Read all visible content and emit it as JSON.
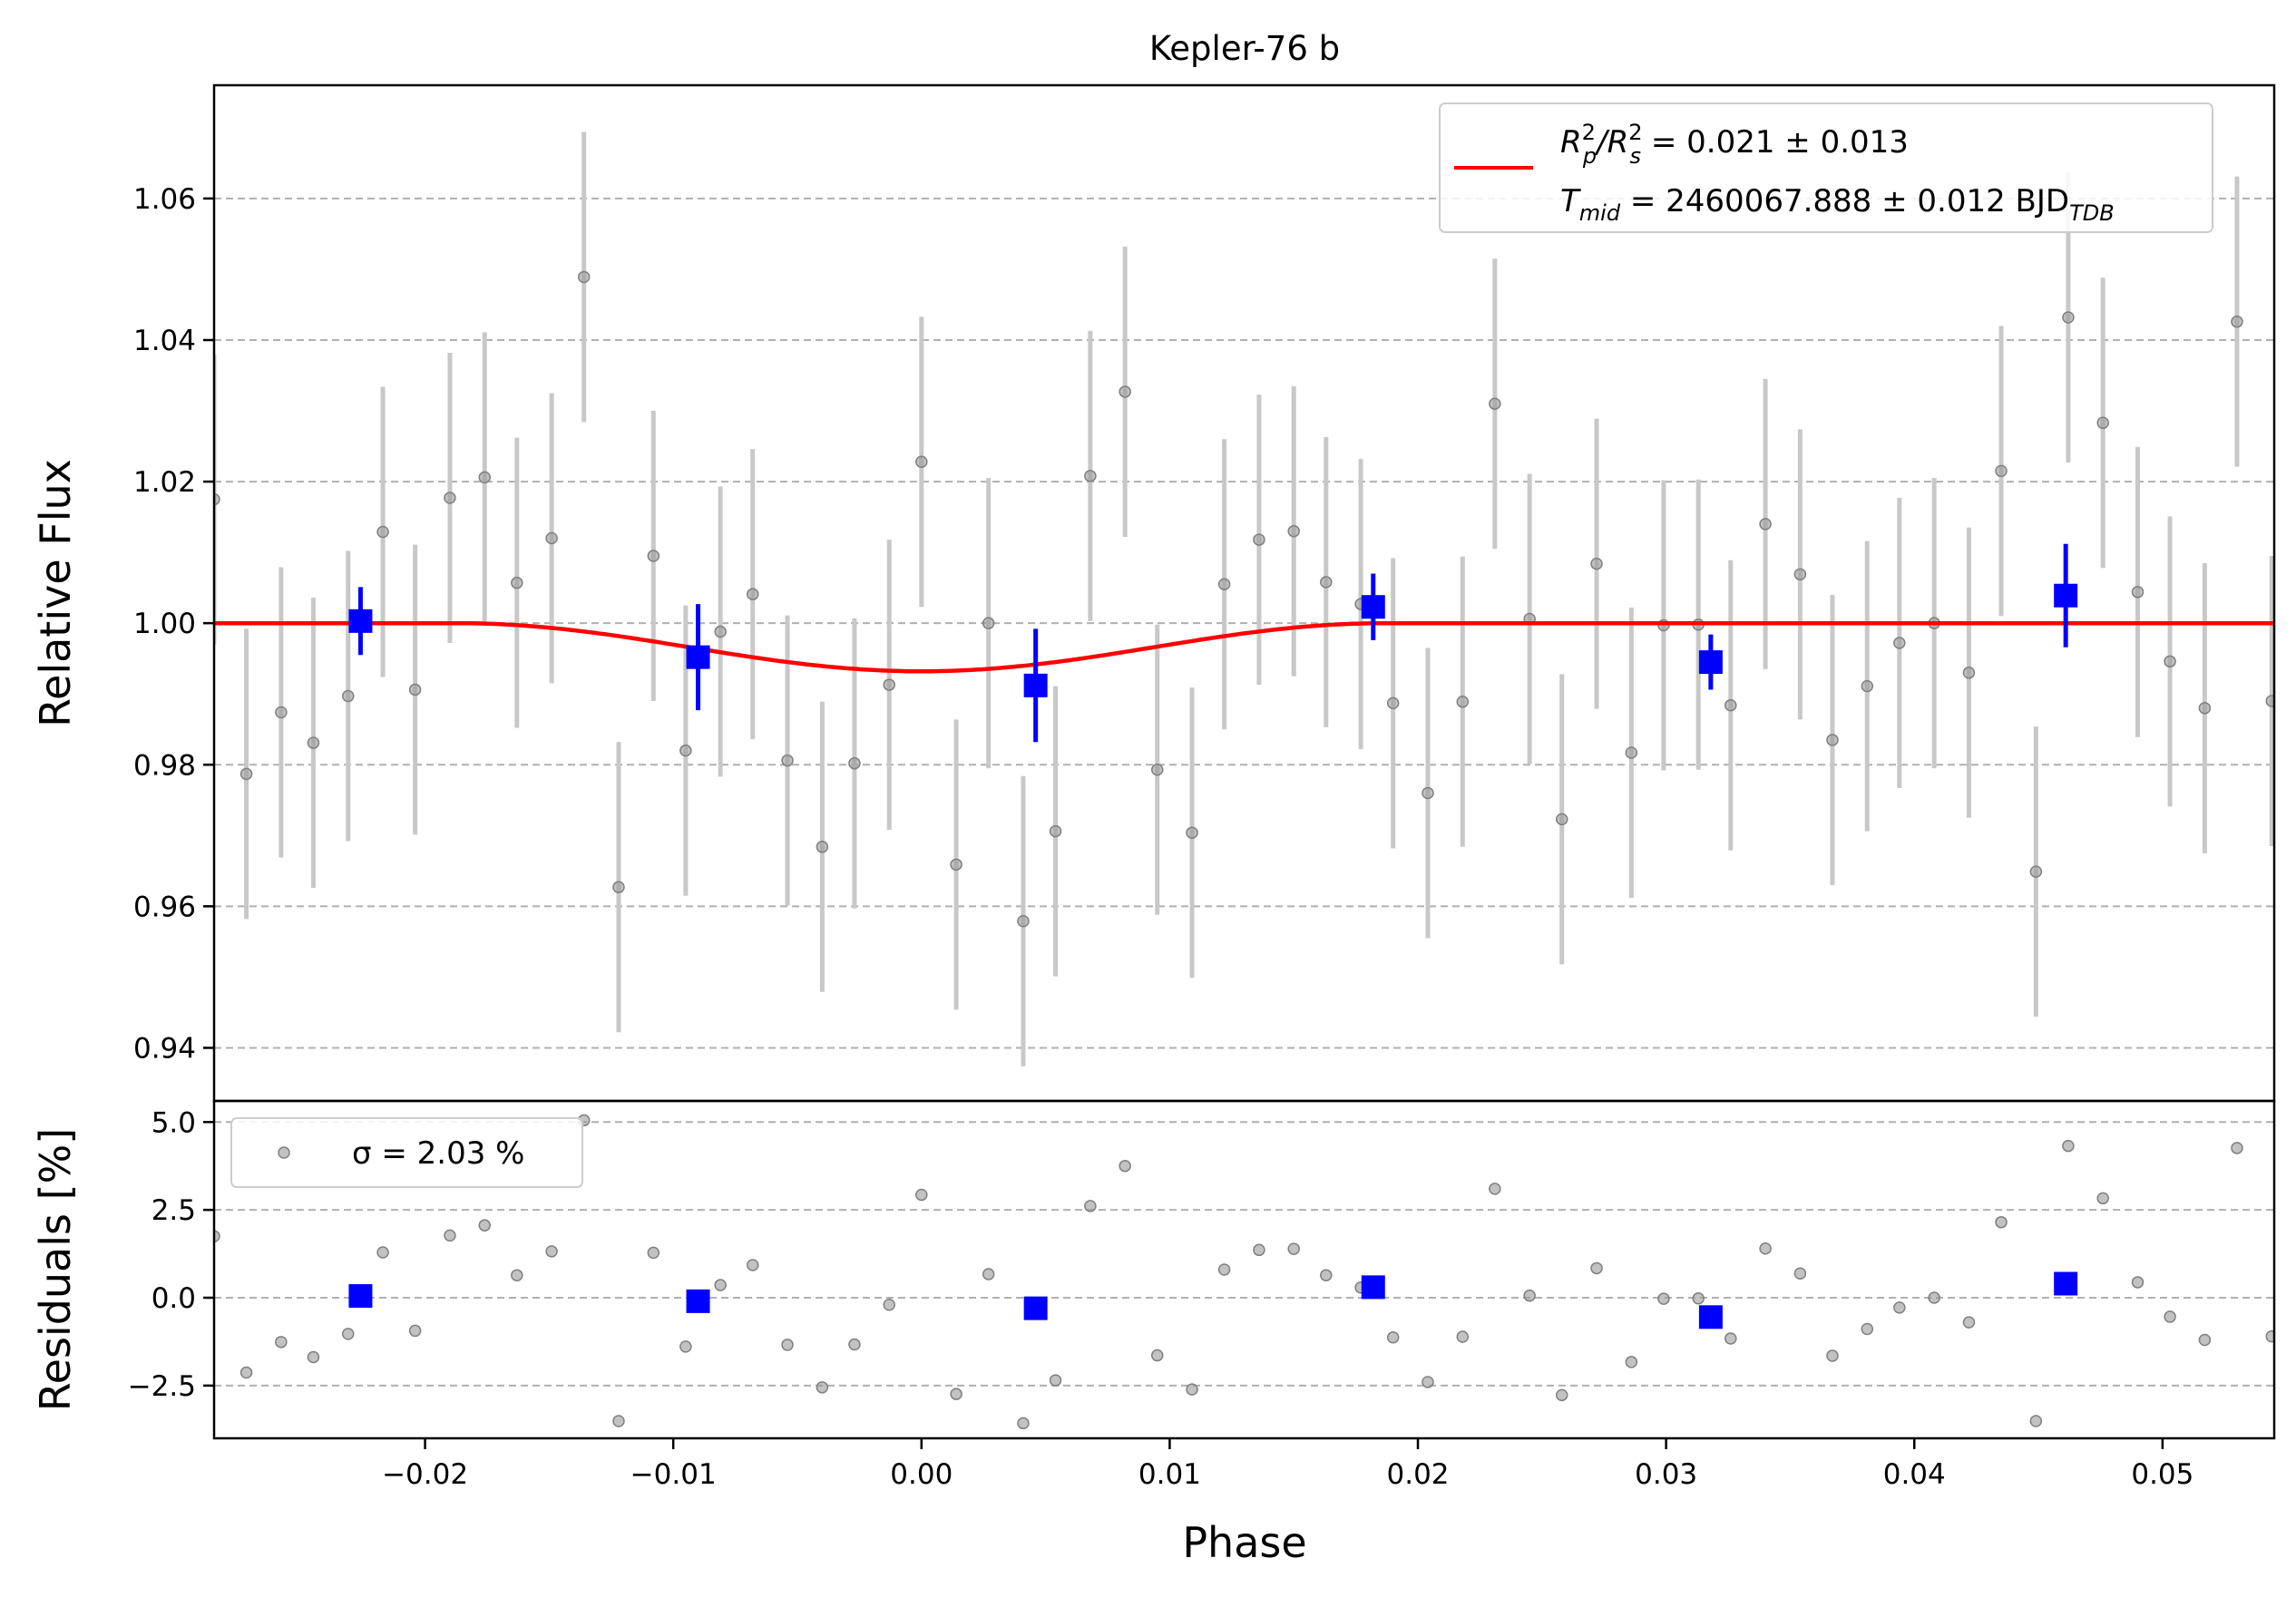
{
  "chart_data": {
    "type": "scatter",
    "title": "Kepler-76 b",
    "xlabel": "Phase",
    "xlim": [
      -0.0285,
      0.0545
    ],
    "xticks": [
      -0.02,
      -0.01,
      0.0,
      0.01,
      0.02,
      0.03,
      0.04,
      0.05
    ],
    "xtick_labels": [
      "−0.02",
      "−0.01",
      "0.00",
      "0.01",
      "0.02",
      "0.03",
      "0.04",
      "0.05"
    ],
    "grid": "horizontal dashed",
    "main_panel": {
      "ylabel": "Relative Flux",
      "ylim": [
        0.9325,
        1.076
      ],
      "yticks": [
        0.94,
        0.96,
        0.98,
        1.0,
        1.02,
        1.04,
        1.06
      ],
      "ytick_labels": [
        "0.94",
        "0.96",
        "0.98",
        "1.00",
        "1.02",
        "1.04",
        "1.06"
      ],
      "legend": {
        "placement": "top-right",
        "line1": {
          "main": "R",
          "sub1": "p",
          "sup1": "2",
          "slash": "/R",
          "sub2": "s",
          "sup2": "2",
          "rest": " = 0.021 ± 0.013"
        },
        "line2": {
          "main": "T",
          "sub1": "mid",
          "rest": " = 2460067.888 ± 0.012 BJD",
          "sub2": "TDB"
        }
      }
    },
    "residual_panel": {
      "ylabel": "Residuals [%]",
      "ylim": [
        -4.0,
        5.6
      ],
      "yticks": [
        -2.5,
        0.0,
        2.5,
        5.0
      ],
      "ytick_labels": [
        "−2.5",
        "0.0",
        "2.5",
        "5.0"
      ],
      "legend": {
        "placement": "top-left",
        "text": "σ = 2.03 %"
      }
    },
    "series": [
      {
        "kind": "raw data",
        "color": "#808080",
        "yerr": 0.0205,
        "x": [
          -0.0285,
          -0.0272,
          -0.0258,
          -0.0245,
          -0.0231,
          -0.0217,
          -0.0204,
          -0.019,
          -0.0176,
          -0.0163,
          -0.0149,
          -0.0136,
          -0.0122,
          -0.0108,
          -0.0095,
          -0.0081,
          -0.0068,
          -0.0054,
          -0.004,
          -0.0027,
          -0.0013,
          0.0,
          0.0014,
          0.0027,
          0.0041,
          0.0054,
          0.0068,
          0.0082,
          0.0095,
          0.0109,
          0.0122,
          0.0136,
          0.015,
          0.0163,
          0.0177,
          0.019,
          0.0204,
          0.0218,
          0.0231,
          0.0245,
          0.0258,
          0.0272,
          0.0286,
          0.0299,
          0.0313,
          0.0326,
          0.034,
          0.0354,
          0.0367,
          0.0381,
          0.0394,
          0.0408,
          0.0422,
          0.0435,
          0.0449,
          0.0462,
          0.0476,
          0.049,
          0.0503,
          0.0517,
          0.053,
          0.0544
        ],
        "y": [
          1.0175,
          0.9787,
          0.9874,
          0.9831,
          0.9897,
          1.0129,
          0.9906,
          1.0177,
          1.0206,
          1.0057,
          1.012,
          1.0489,
          0.9627,
          1.0095,
          0.982,
          0.9988,
          1.0041,
          0.9806,
          0.9684,
          0.9802,
          0.9913,
          1.0228,
          0.9659,
          1.0,
          0.9579,
          0.9706,
          1.0208,
          1.0327,
          0.9793,
          0.9704,
          1.0055,
          1.0118,
          1.013,
          1.0058,
          1.0027,
          0.9887,
          0.976,
          0.9889,
          1.031,
          1.0006,
          0.9723,
          1.0084,
          0.9817,
          0.9997,
          0.9998,
          0.9884,
          1.014,
          1.0069,
          0.9835,
          0.9911,
          0.9972,
          1.0,
          0.993,
          1.0215,
          0.9649,
          1.0432,
          1.0283,
          1.0044,
          0.9946,
          0.988,
          1.0426,
          0.989
        ]
      },
      {
        "kind": "binned",
        "color": "#0000ff",
        "x": [
          -0.0226,
          -0.009,
          0.0046,
          0.0182,
          0.0318,
          0.0461
        ],
        "y": [
          1.0003,
          0.9952,
          0.9912,
          1.0023,
          0.9945,
          1.0039
        ],
        "yerr": [
          0.0048,
          0.0075,
          0.008,
          0.0047,
          0.0039,
          0.0073
        ],
        "residuals": [
          0.05,
          -0.1,
          -0.3,
          0.3,
          -0.55,
          0.4
        ]
      },
      {
        "kind": "transit model",
        "color": "#ff0000",
        "baseline": 1.0,
        "t1": -0.0187,
        "t4": 0.0187,
        "min": 0.9932
      }
    ],
    "residuals_raw": [
      1.75,
      -2.13,
      -1.26,
      -1.69,
      -1.03,
      1.29,
      -0.94,
      1.77,
      2.06,
      0.64,
      1.32,
      5.05,
      -3.51,
      1.28,
      -1.39,
      0.36,
      0.93,
      -1.34,
      -2.55,
      -1.33,
      -0.2,
      2.93,
      -2.74,
      0.67,
      -3.57,
      -2.35,
      2.61,
      3.75,
      -1.64,
      -2.61,
      0.8,
      1.36,
      1.39,
      0.64,
      0.29,
      -1.13,
      -2.4,
      -1.11,
      3.1,
      0.06,
      -2.77,
      0.84,
      -1.83,
      -0.03,
      -0.02,
      -1.16,
      1.4,
      0.69,
      -1.65,
      -0.89,
      -0.28,
      0.0,
      -0.7,
      2.15,
      -3.51,
      4.32,
      2.83,
      0.44,
      -0.54,
      -1.2,
      4.26,
      -1.1
    ]
  }
}
